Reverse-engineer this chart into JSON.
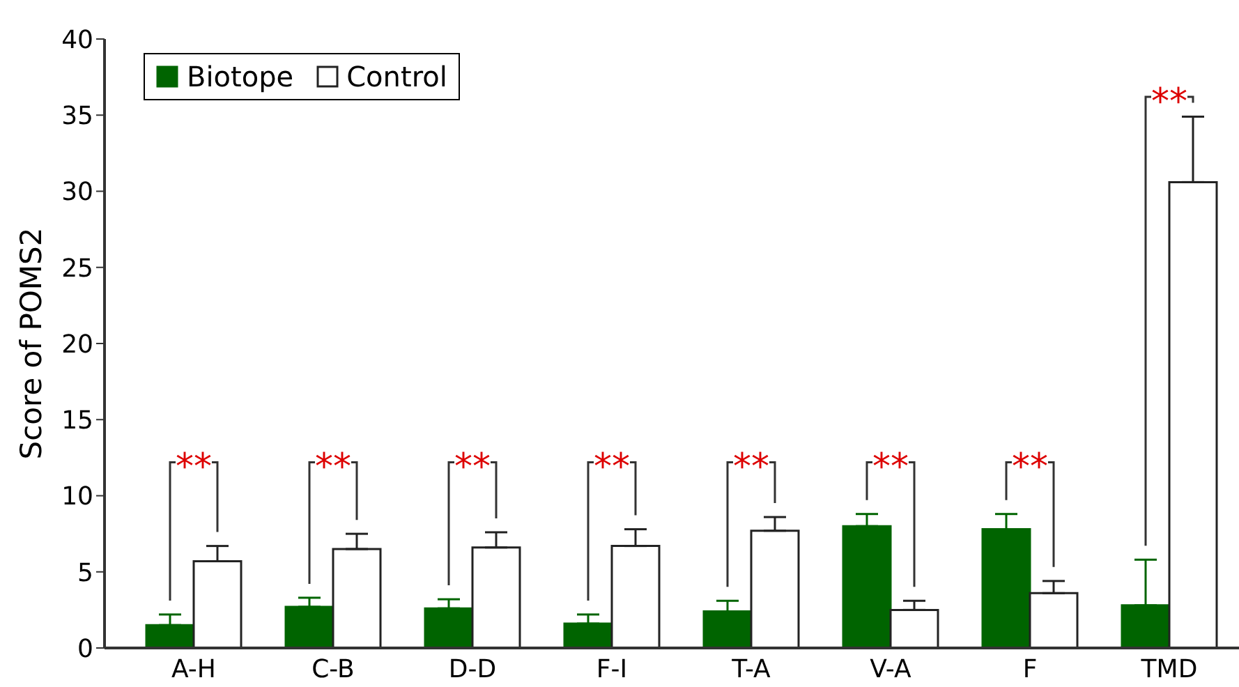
{
  "chart_data": {
    "type": "bar",
    "ylabel": "Score of POMS2",
    "categories": [
      "A-H",
      "C-B",
      "D-D",
      "F-I",
      "T-A",
      "V-A",
      "F",
      "TMD"
    ],
    "series": [
      {
        "name": "Biotope",
        "color": "#006400",
        "values": [
          1.5,
          2.7,
          2.6,
          1.6,
          2.4,
          8.0,
          7.8,
          2.8
        ],
        "errors": [
          [
            1.5,
            2.2
          ],
          [
            2.7,
            3.3
          ],
          [
            2.6,
            3.2
          ],
          [
            1.6,
            2.2
          ],
          [
            2.4,
            3.1
          ],
          [
            8.0,
            8.8
          ],
          [
            7.8,
            8.8
          ],
          [
            2.8,
            5.8
          ]
        ]
      },
      {
        "name": "Control",
        "color": "#ffffff",
        "values": [
          5.7,
          6.5,
          6.6,
          6.7,
          7.7,
          2.5,
          3.6,
          30.6
        ],
        "errors": [
          [
            5.7,
            6.7
          ],
          [
            6.5,
            7.5
          ],
          [
            6.6,
            7.6
          ],
          [
            6.7,
            7.8
          ],
          [
            7.7,
            8.6
          ],
          [
            2.5,
            3.1
          ],
          [
            3.6,
            4.4
          ],
          [
            30.6,
            34.9
          ]
        ]
      }
    ],
    "ylim": [
      0,
      40
    ],
    "yticks": [
      0,
      5,
      10,
      15,
      20,
      25,
      30,
      35,
      40
    ],
    "legend": "top left",
    "annotations": [
      "**",
      "**",
      "**",
      "**",
      "**",
      "**",
      "**",
      "**"
    ]
  }
}
